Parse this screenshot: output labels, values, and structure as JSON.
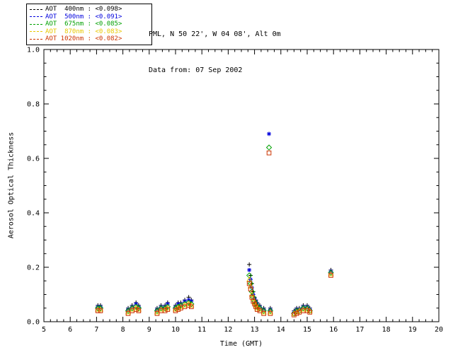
{
  "header": {
    "station": "PML, N 50 22', W 04 08', Alt 0m",
    "date_line": "Data from: 07 Sep 2002"
  },
  "chart_data": {
    "type": "scatter",
    "title": "",
    "xlabel": "Time (GMT)",
    "ylabel": "Aerosol Optical Thickness",
    "xlim": [
      5,
      20
    ],
    "ylim": [
      0.0,
      1.0
    ],
    "x_ticks": [
      5,
      6,
      7,
      8,
      9,
      10,
      11,
      12,
      13,
      14,
      15,
      16,
      17,
      18,
      19,
      20
    ],
    "y_ticks": [
      0.0,
      0.2,
      0.4,
      0.6,
      0.8,
      1.0
    ],
    "grid": false,
    "legend_position": "top-left",
    "x": [
      7.05,
      7.15,
      8.2,
      8.35,
      8.5,
      8.6,
      9.3,
      9.45,
      9.6,
      9.7,
      10.0,
      10.1,
      10.2,
      10.35,
      10.5,
      10.6,
      12.8,
      12.85,
      12.9,
      12.95,
      13.0,
      13.05,
      13.1,
      13.2,
      13.35,
      13.55,
      13.6,
      14.5,
      14.6,
      14.7,
      14.85,
      15.0,
      15.1,
      15.9
    ],
    "series": [
      {
        "name": "AOT  400nm",
        "mean": "<0.098>",
        "color": "#000000",
        "marker": "plus",
        "values": [
          0.06,
          0.06,
          0.05,
          0.06,
          0.07,
          0.06,
          0.05,
          0.06,
          0.06,
          0.07,
          0.06,
          0.07,
          0.07,
          0.08,
          0.09,
          0.08,
          0.21,
          0.17,
          0.14,
          0.11,
          0.09,
          0.08,
          0.07,
          0.06,
          0.05,
          null,
          0.05,
          0.04,
          0.05,
          0.05,
          0.06,
          0.06,
          0.05,
          0.19
        ]
      },
      {
        "name": "AOT  500nm",
        "mean": "<0.091>",
        "color": "#0000dd",
        "marker": "asterisk",
        "values": [
          0.055,
          0.055,
          0.045,
          0.055,
          0.065,
          0.055,
          0.045,
          0.055,
          0.055,
          0.065,
          0.055,
          0.065,
          0.065,
          0.075,
          0.08,
          0.075,
          0.19,
          0.155,
          0.125,
          0.1,
          0.085,
          0.075,
          0.065,
          0.055,
          0.045,
          0.69,
          0.045,
          0.035,
          0.045,
          0.045,
          0.055,
          0.055,
          0.045,
          0.185
        ]
      },
      {
        "name": "AOT  675nm",
        "mean": "<0.085>",
        "color": "#00a000",
        "marker": "diamond",
        "values": [
          0.05,
          0.05,
          0.04,
          0.05,
          0.055,
          0.05,
          0.04,
          0.05,
          0.05,
          0.055,
          0.05,
          0.055,
          0.06,
          0.065,
          0.07,
          0.065,
          0.17,
          0.14,
          0.11,
          0.09,
          0.075,
          0.065,
          0.055,
          0.05,
          0.04,
          0.64,
          0.04,
          0.03,
          0.04,
          0.04,
          0.05,
          0.05,
          0.04,
          0.18
        ]
      },
      {
        "name": "AOT  870nm",
        "mean": "<0.083>",
        "color": "#e8c800",
        "marker": "triangle",
        "values": [
          0.045,
          0.045,
          0.035,
          0.045,
          0.05,
          0.045,
          0.035,
          0.045,
          0.045,
          0.05,
          0.045,
          0.05,
          0.055,
          0.06,
          0.065,
          0.06,
          0.155,
          0.13,
          0.1,
          0.085,
          0.07,
          0.06,
          0.05,
          0.045,
          0.035,
          null,
          0.035,
          0.03,
          0.035,
          0.04,
          0.045,
          0.045,
          0.04,
          0.175
        ]
      },
      {
        "name": "AOT 1020nm",
        "mean": "<0.082>",
        "color": "#cc3300",
        "marker": "square",
        "values": [
          0.04,
          0.04,
          0.03,
          0.04,
          0.045,
          0.04,
          0.03,
          0.04,
          0.04,
          0.045,
          0.04,
          0.045,
          0.05,
          0.055,
          0.06,
          0.055,
          0.14,
          0.12,
          0.09,
          0.075,
          0.065,
          0.055,
          0.045,
          0.04,
          0.03,
          0.62,
          0.03,
          0.025,
          0.03,
          0.035,
          0.04,
          0.04,
          0.035,
          0.17
        ]
      }
    ]
  }
}
